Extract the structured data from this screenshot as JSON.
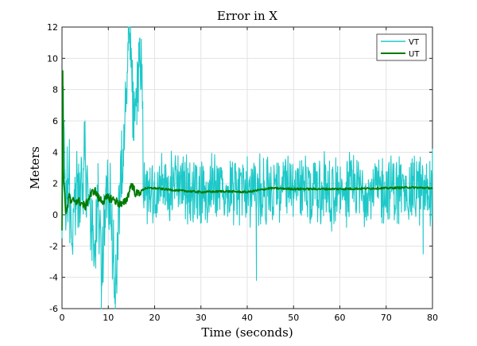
{
  "chart_data": {
    "type": "line",
    "title": "Error in X",
    "xlabel": "Time (seconds)",
    "ylabel": "Meters",
    "xlim": [
      0,
      80
    ],
    "ylim": [
      -6,
      12
    ],
    "xticks": [
      0,
      10,
      20,
      30,
      40,
      50,
      60,
      70,
      80
    ],
    "yticks": [
      -6,
      -4,
      -2,
      0,
      2,
      4,
      6,
      8,
      10,
      12
    ],
    "grid": true,
    "legend_position": "top-right",
    "series": [
      {
        "name": "VT",
        "color": "#1ec8c8",
        "x": [
          0,
          0.3,
          0.6,
          1,
          1.5,
          2,
          3,
          4,
          5,
          6,
          7,
          7.8,
          8.5,
          9.5,
          10.5,
          11.5,
          12.5,
          13.2,
          13.8,
          14.3,
          14.8,
          15.5,
          16.2,
          16.8,
          17.3,
          18,
          19,
          20,
          22,
          25,
          28,
          31,
          34,
          37,
          40,
          42,
          45,
          50,
          55,
          60,
          65,
          70,
          75,
          78,
          80
        ],
        "y": [
          -1.5,
          8.2,
          2.5,
          1,
          3,
          -1.5,
          2,
          0.5,
          3.5,
          1,
          -2.5,
          2,
          -5.2,
          1.5,
          0.5,
          -4,
          2,
          3.5,
          7,
          10.5,
          11,
          6,
          7,
          11.3,
          9,
          1,
          3,
          2,
          1.5,
          1.8,
          1.2,
          1.5,
          1.8,
          1.4,
          1.3,
          -4.2,
          1.7,
          1.5,
          1.8,
          1.6,
          1.5,
          1.7,
          1.6,
          -2.5,
          4.2
        ]
      },
      {
        "name": "UT",
        "color": "#007a00",
        "x": [
          0,
          0.15,
          0.3,
          0.5,
          0.8,
          1.2,
          1.6,
          2,
          2.5,
          3,
          4,
          5,
          6,
          7,
          8,
          9,
          10,
          11,
          12,
          13,
          14,
          14.5,
          15,
          16,
          17,
          18,
          20,
          25,
          30,
          35,
          40,
          45,
          50,
          60,
          70,
          75,
          80
        ],
        "y": [
          -1,
          9.2,
          3,
          1.5,
          0.2,
          0.5,
          1.3,
          0.6,
          1,
          0.9,
          0.8,
          0.5,
          1.2,
          1.6,
          1,
          0.9,
          1.1,
          1,
          0.8,
          0.6,
          1,
          1.5,
          2,
          1.3,
          1.5,
          1.7,
          1.7,
          1.55,
          1.45,
          1.5,
          1.45,
          1.7,
          1.65,
          1.65,
          1.7,
          1.75,
          1.7
        ]
      }
    ]
  }
}
